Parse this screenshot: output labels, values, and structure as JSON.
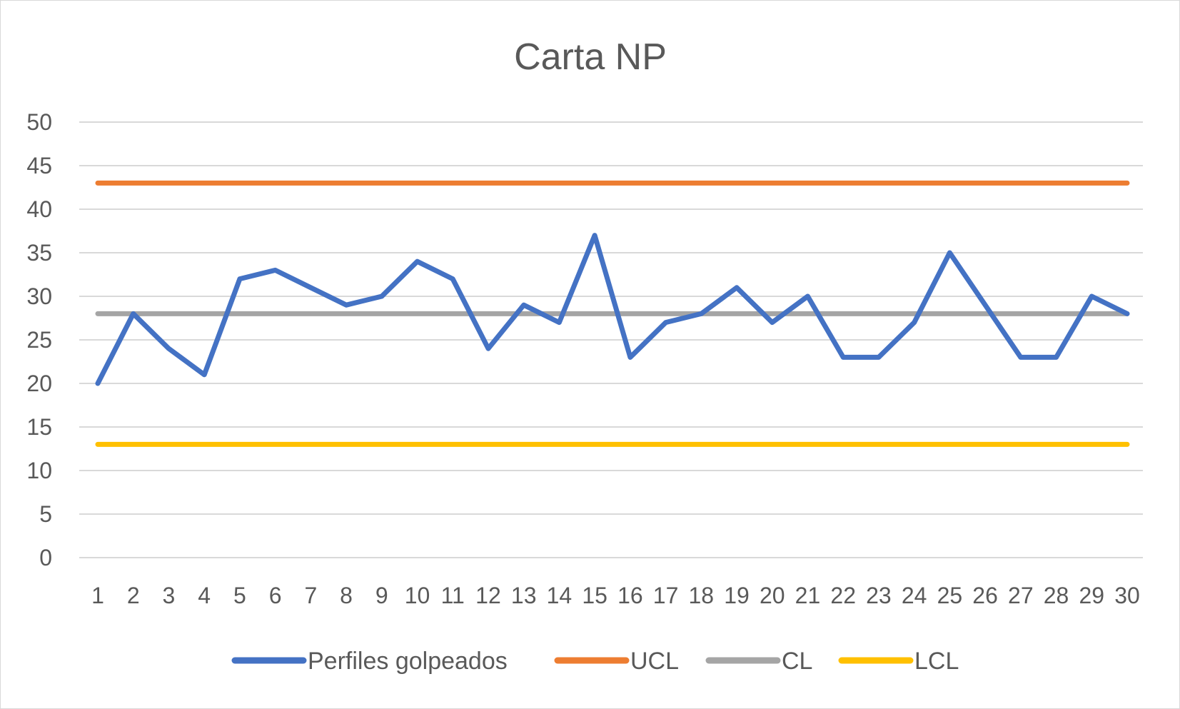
{
  "chart_data": {
    "type": "line",
    "title": "Carta NP",
    "xlabel": "",
    "ylabel": "",
    "ylim": [
      0,
      50
    ],
    "yticks": [
      0,
      5,
      10,
      15,
      20,
      25,
      30,
      35,
      40,
      45,
      50
    ],
    "grid": true,
    "legend_position": "bottom",
    "categories": [
      "1",
      "2",
      "3",
      "4",
      "5",
      "6",
      "7",
      "8",
      "9",
      "10",
      "11",
      "12",
      "13",
      "14",
      "15",
      "16",
      "17",
      "18",
      "19",
      "20",
      "21",
      "22",
      "23",
      "24",
      "25",
      "26",
      "27",
      "28",
      "29",
      "30"
    ],
    "series": [
      {
        "name": "Perfiles golpeados",
        "color": "#4472c4",
        "values": [
          20,
          28,
          24,
          21,
          32,
          33,
          31,
          29,
          30,
          34,
          32,
          24,
          29,
          27,
          37,
          23,
          27,
          28,
          31,
          27,
          30,
          23,
          23,
          27,
          35,
          29,
          23,
          23,
          30,
          28
        ]
      },
      {
        "name": "UCL",
        "color": "#ed7d31",
        "values": [
          43,
          43,
          43,
          43,
          43,
          43,
          43,
          43,
          43,
          43,
          43,
          43,
          43,
          43,
          43,
          43,
          43,
          43,
          43,
          43,
          43,
          43,
          43,
          43,
          43,
          43,
          43,
          43,
          43,
          43
        ]
      },
      {
        "name": "CL",
        "color": "#a5a5a5",
        "values": [
          28,
          28,
          28,
          28,
          28,
          28,
          28,
          28,
          28,
          28,
          28,
          28,
          28,
          28,
          28,
          28,
          28,
          28,
          28,
          28,
          28,
          28,
          28,
          28,
          28,
          28,
          28,
          28,
          28,
          28
        ]
      },
      {
        "name": "LCL",
        "color": "#ffc000",
        "values": [
          13,
          13,
          13,
          13,
          13,
          13,
          13,
          13,
          13,
          13,
          13,
          13,
          13,
          13,
          13,
          13,
          13,
          13,
          13,
          13,
          13,
          13,
          13,
          13,
          13,
          13,
          13,
          13,
          13,
          13
        ]
      }
    ]
  }
}
